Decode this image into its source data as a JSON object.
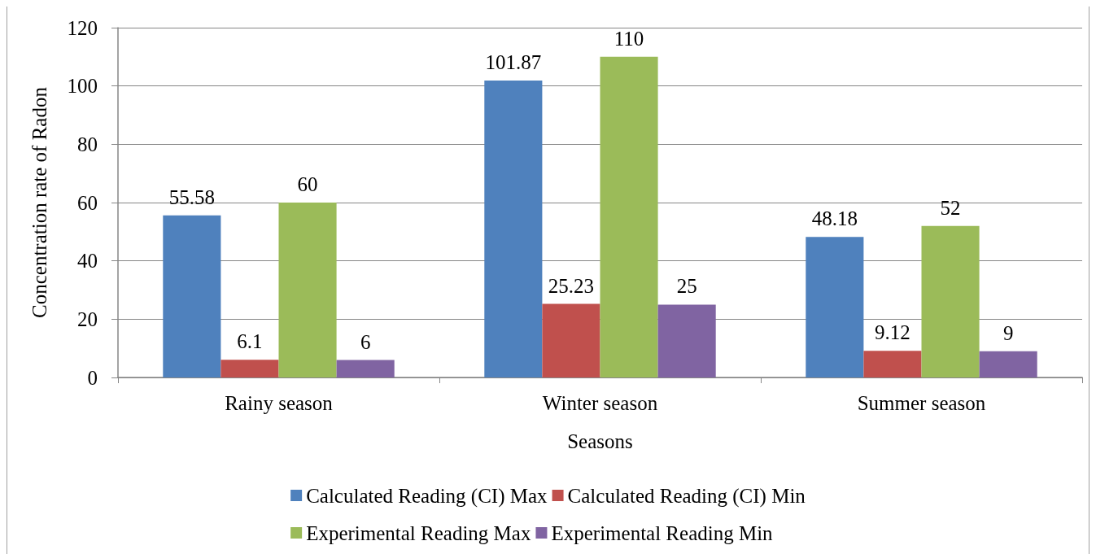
{
  "chart_data": {
    "type": "bar",
    "xlabel": "Seasons",
    "ylabel": "Concentration rate of Radon",
    "categories": [
      "Rainy season",
      "Winter season",
      "Summer season"
    ],
    "series": [
      {
        "name": "Calculated Reading (CI) Max",
        "color": "#4f81bd",
        "values": [
          55.58,
          101.87,
          48.18
        ]
      },
      {
        "name": "Calculated Reading (CI) Min",
        "color": "#c0504d",
        "values": [
          6.1,
          25.23,
          9.12
        ]
      },
      {
        "name": "Experimental Reading Max",
        "color": "#9bbb59",
        "values": [
          60,
          110,
          52
        ]
      },
      {
        "name": "Experimental Reading Min",
        "color": "#8064a2",
        "values": [
          6,
          25,
          9
        ]
      }
    ],
    "ylim": [
      0,
      120
    ],
    "yticks": [
      0,
      20,
      40,
      60,
      80,
      100,
      120
    ],
    "grid": "y",
    "legend": "bottom",
    "data_labels": true
  }
}
